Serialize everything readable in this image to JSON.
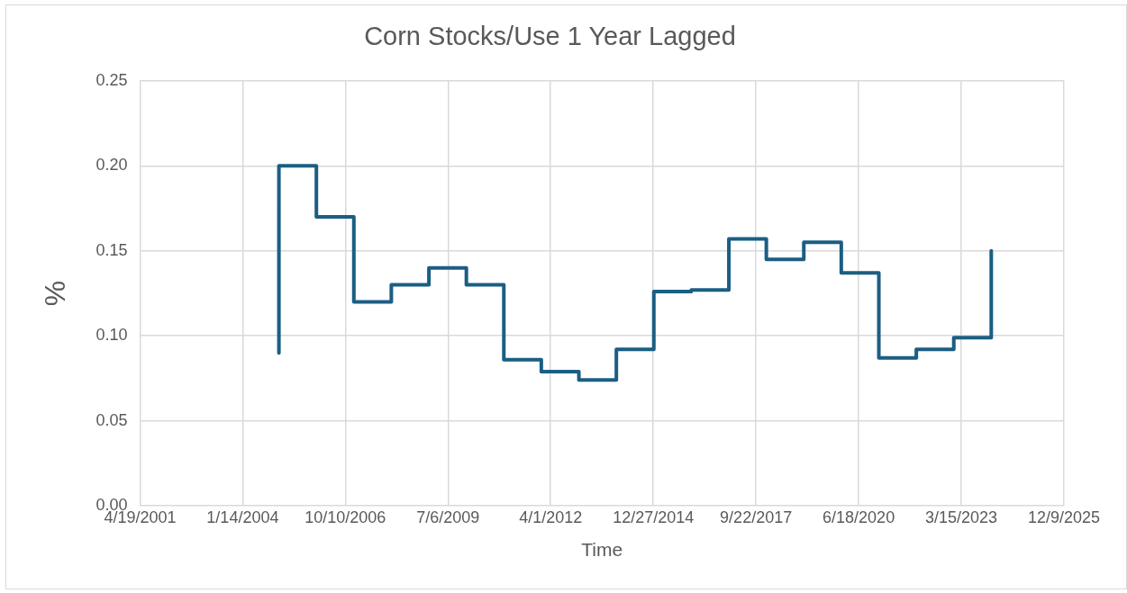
{
  "chart_data": {
    "type": "step",
    "title": "Corn Stocks/Use 1 Year Lagged",
    "xlabel": "Time",
    "ylabel": "%",
    "x": [
      "2005-01-01",
      "2005-01-01",
      "2006-01-01",
      "2007-01-01",
      "2008-01-01",
      "2009-01-01",
      "2010-01-01",
      "2011-01-01",
      "2012-01-01",
      "2013-01-01",
      "2014-01-01",
      "2015-01-01",
      "2016-01-01",
      "2017-01-01",
      "2018-01-01",
      "2019-01-01",
      "2020-01-01",
      "2021-01-01",
      "2022-01-01",
      "2023-01-01",
      "2024-01-01"
    ],
    "series": [
      {
        "color": "#1b5e83",
        "values": [
          0.09,
          0.2,
          0.17,
          0.12,
          0.13,
          0.14,
          0.13,
          0.086,
          0.079,
          0.074,
          0.092,
          0.126,
          0.127,
          0.157,
          0.145,
          0.155,
          0.137,
          0.087,
          0.092,
          0.099,
          0.15
        ]
      }
    ],
    "xlim": [
      "2001-04-19",
      "2025-12-09"
    ],
    "xticks": [
      {
        "value": "2001-04-19",
        "label": "4/19/2001"
      },
      {
        "value": "2004-01-14",
        "label": "1/14/2004"
      },
      {
        "value": "2006-10-10",
        "label": "10/10/2006"
      },
      {
        "value": "2009-07-06",
        "label": "7/6/2009"
      },
      {
        "value": "2012-04-01",
        "label": "4/1/2012"
      },
      {
        "value": "2014-12-27",
        "label": "12/27/2014"
      },
      {
        "value": "2017-09-22",
        "label": "9/22/2017"
      },
      {
        "value": "2020-06-18",
        "label": "6/18/2020"
      },
      {
        "value": "2023-03-15",
        "label": "3/15/2023"
      },
      {
        "value": "2025-12-09",
        "label": "12/9/2025"
      }
    ],
    "ylim": [
      0,
      0.25
    ],
    "yticks": [
      {
        "value": 0,
        "label": "0.00"
      },
      {
        "value": 0.05,
        "label": "0.05"
      },
      {
        "value": 0.1,
        "label": "0.10"
      },
      {
        "value": 0.15,
        "label": "0.15"
      },
      {
        "value": 0.2,
        "label": "0.20"
      },
      {
        "value": 0.25,
        "label": "0.25"
      }
    ],
    "grid": true,
    "legend": false,
    "line_style": "solid",
    "marker": "none"
  }
}
